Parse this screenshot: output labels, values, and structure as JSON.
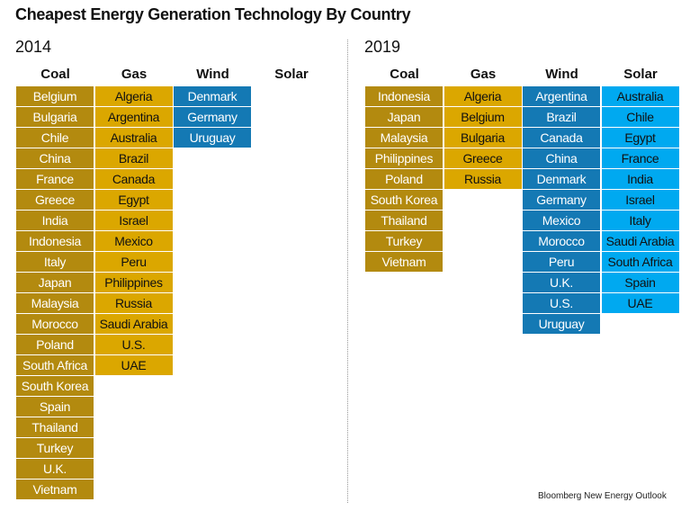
{
  "title": "Cheapest Energy Generation Technology By Country",
  "source": "Bloomberg New Energy Outlook",
  "colors": {
    "Coal": {
      "bg": "#b38a0f",
      "fg": "#ffffff"
    },
    "Gas": {
      "bg": "#dba700",
      "fg": "#111111"
    },
    "Wind": {
      "bg": "#1479b4",
      "fg": "#ffffff"
    },
    "Solar": {
      "bg": "#00a9f0",
      "fg": "#111111"
    }
  },
  "chart_data": {
    "type": "table",
    "title": "Cheapest Energy Generation Technology By Country",
    "panels": [
      {
        "year": "2014",
        "columns": [
          {
            "name": "Coal",
            "countries": [
              "Belgium",
              "Bulgaria",
              "Chile",
              "China",
              "France",
              "Greece",
              "India",
              "Indonesia",
              "Italy",
              "Japan",
              "Malaysia",
              "Morocco",
              "Poland",
              "South Africa",
              "South Korea",
              "Spain",
              "Thailand",
              "Turkey",
              "U.K.",
              "Vietnam"
            ]
          },
          {
            "name": "Gas",
            "countries": [
              "Algeria",
              "Argentina",
              "Australia",
              "Brazil",
              "Canada",
              "Egypt",
              "Israel",
              "Mexico",
              "Peru",
              "Philippines",
              "Russia",
              "Saudi Arabia",
              "U.S.",
              "UAE"
            ]
          },
          {
            "name": "Wind",
            "countries": [
              "Denmark",
              "Germany",
              "Uruguay"
            ]
          },
          {
            "name": "Solar",
            "countries": []
          }
        ]
      },
      {
        "year": "2019",
        "columns": [
          {
            "name": "Coal",
            "countries": [
              "Indonesia",
              "Japan",
              "Malaysia",
              "Philippines",
              "Poland",
              "South Korea",
              "Thailand",
              "Turkey",
              "Vietnam"
            ]
          },
          {
            "name": "Gas",
            "countries": [
              "Algeria",
              "Belgium",
              "Bulgaria",
              "Greece",
              "Russia"
            ]
          },
          {
            "name": "Wind",
            "countries": [
              "Argentina",
              "Brazil",
              "Canada",
              "China",
              "Denmark",
              "Germany",
              "Mexico",
              "Morocco",
              "Peru",
              "U.K.",
              "U.S.",
              "Uruguay"
            ]
          },
          {
            "name": "Solar",
            "countries": [
              "Australia",
              "Chile",
              "Egypt",
              "France",
              "India",
              "Israel",
              "Italy",
              "Saudi Arabia",
              "South Africa",
              "Spain",
              "UAE"
            ]
          }
        ]
      }
    ]
  }
}
